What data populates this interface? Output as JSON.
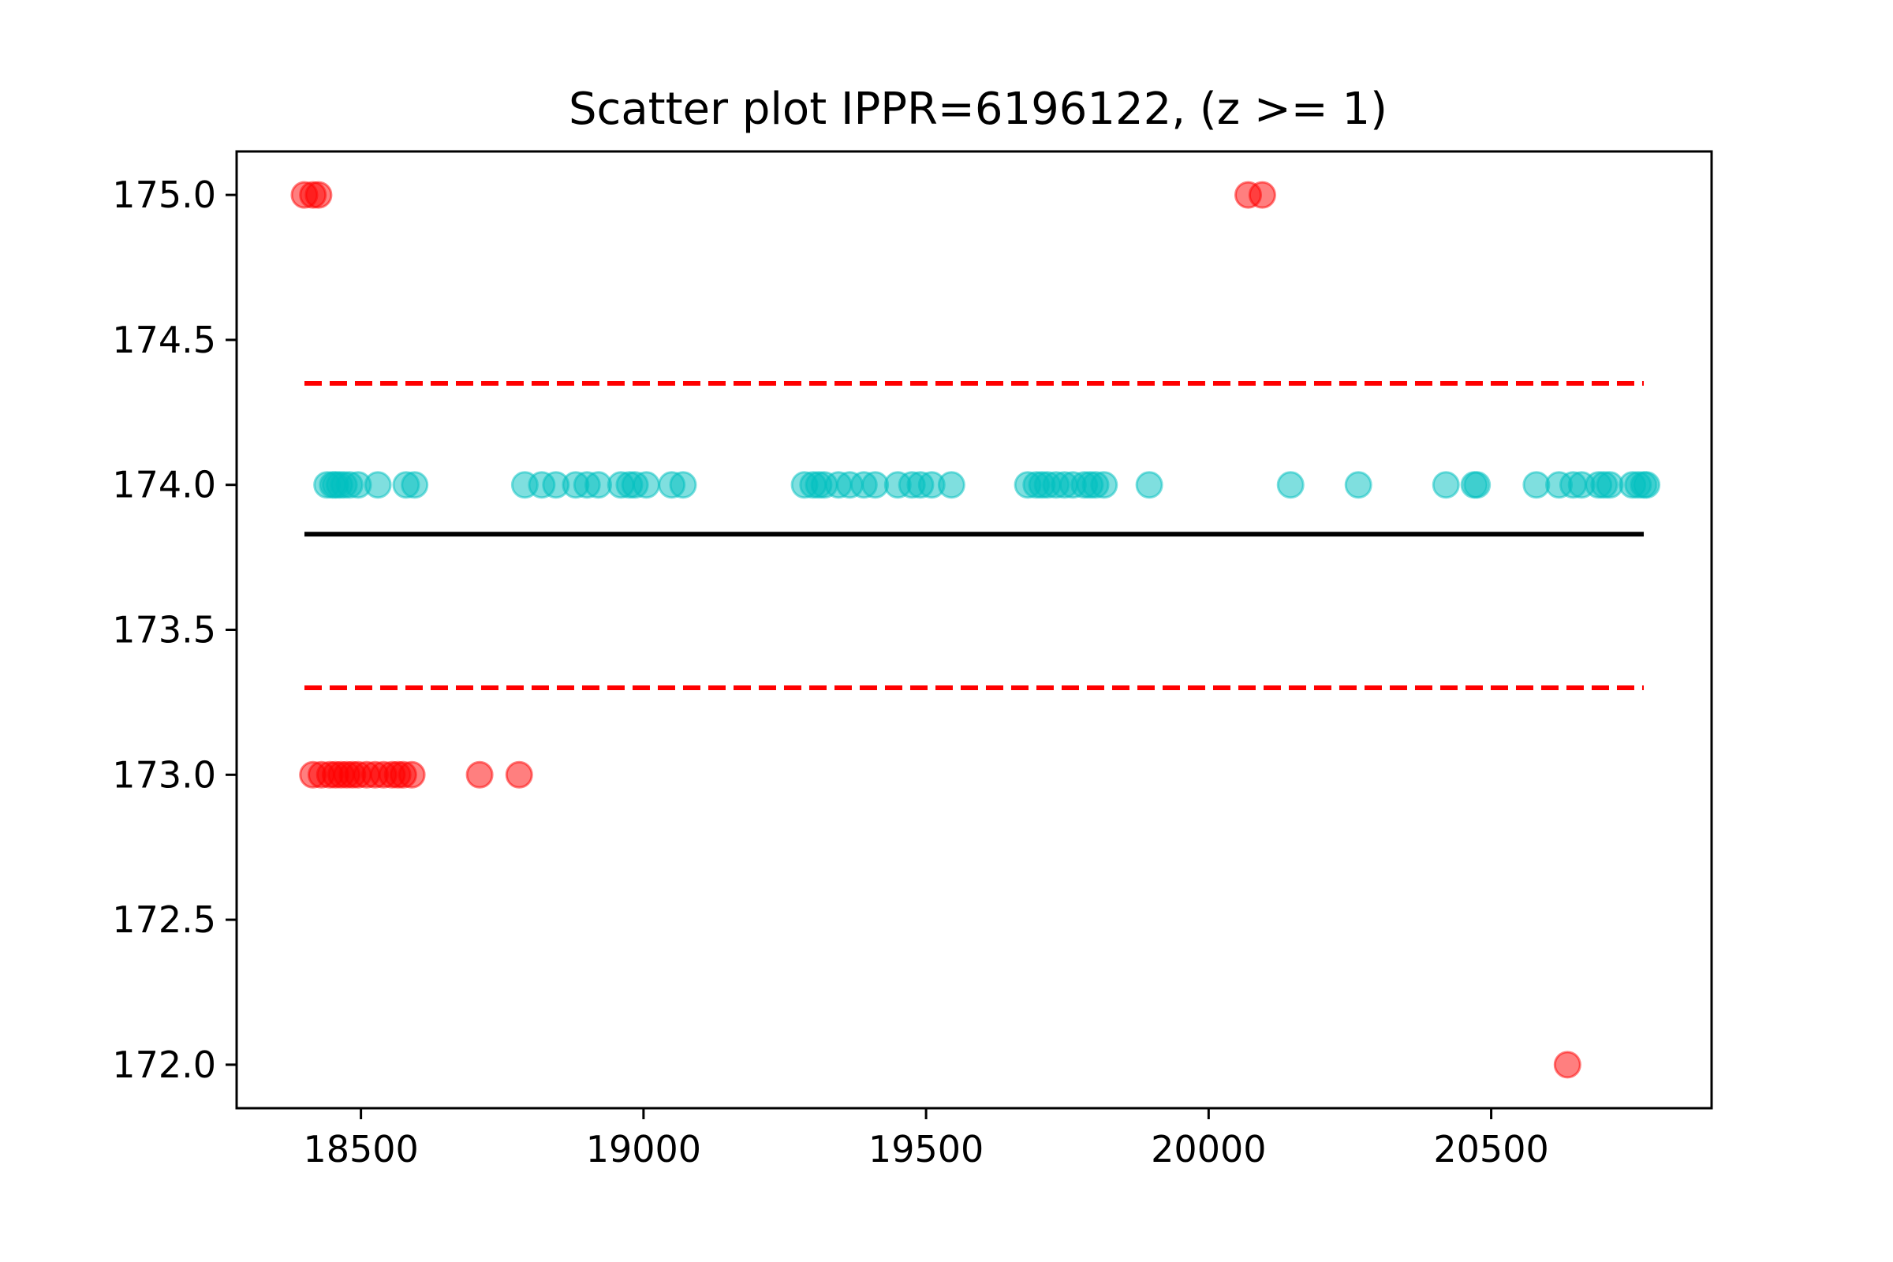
{
  "chart_data": {
    "type": "scatter",
    "title": "Scatter plot IPPR=6196122, (z >= 1)",
    "xlabel": "",
    "ylabel": "",
    "xlim": [
      18280,
      20890
    ],
    "ylim": [
      171.85,
      175.15
    ],
    "x_ticks": [
      18500,
      19000,
      19500,
      20000,
      20500
    ],
    "y_ticks": [
      172.0,
      172.5,
      173.0,
      173.5,
      174.0,
      174.5,
      175.0
    ],
    "grid": false,
    "legend": "none",
    "colors": {
      "inlier": "#00bfbf",
      "outlier": "#ff0000",
      "mean_line": "#000000",
      "bound_line": "#ff0000"
    },
    "reference_lines": [
      {
        "role": "mean",
        "y": 173.83,
        "x_range": [
          18400,
          20770
        ],
        "style": "solid"
      },
      {
        "role": "upper-bound",
        "y": 174.35,
        "x_range": [
          18400,
          20770
        ],
        "style": "dashed"
      },
      {
        "role": "lower-bound",
        "y": 173.3,
        "x_range": [
          18400,
          20770
        ],
        "style": "dashed"
      }
    ],
    "series": [
      {
        "role": "inliers",
        "points": [
          [
            18440,
            174
          ],
          [
            18450,
            174
          ],
          [
            18455,
            174
          ],
          [
            18462,
            174
          ],
          [
            18470,
            174
          ],
          [
            18480,
            174
          ],
          [
            18495,
            174
          ],
          [
            18530,
            174
          ],
          [
            18580,
            174
          ],
          [
            18595,
            174
          ],
          [
            18790,
            174
          ],
          [
            18820,
            174
          ],
          [
            18845,
            174
          ],
          [
            18880,
            174
          ],
          [
            18900,
            174
          ],
          [
            18920,
            174
          ],
          [
            18960,
            174
          ],
          [
            18975,
            174
          ],
          [
            18985,
            174
          ],
          [
            19005,
            174
          ],
          [
            19050,
            174
          ],
          [
            19070,
            174
          ],
          [
            19285,
            174
          ],
          [
            19300,
            174
          ],
          [
            19310,
            174
          ],
          [
            19320,
            174
          ],
          [
            19345,
            174
          ],
          [
            19365,
            174
          ],
          [
            19390,
            174
          ],
          [
            19410,
            174
          ],
          [
            19450,
            174
          ],
          [
            19475,
            174
          ],
          [
            19490,
            174
          ],
          [
            19510,
            174
          ],
          [
            19545,
            174
          ],
          [
            19680,
            174
          ],
          [
            19695,
            174
          ],
          [
            19705,
            174
          ],
          [
            19715,
            174
          ],
          [
            19730,
            174
          ],
          [
            19745,
            174
          ],
          [
            19760,
            174
          ],
          [
            19780,
            174
          ],
          [
            19790,
            174
          ],
          [
            19800,
            174
          ],
          [
            19815,
            174
          ],
          [
            19895,
            174
          ],
          [
            20145,
            174
          ],
          [
            20265,
            174
          ],
          [
            20420,
            174
          ],
          [
            20470,
            174
          ],
          [
            20475,
            174
          ],
          [
            20580,
            174
          ],
          [
            20620,
            174
          ],
          [
            20645,
            174
          ],
          [
            20660,
            174
          ],
          [
            20690,
            174
          ],
          [
            20700,
            174
          ],
          [
            20710,
            174
          ],
          [
            20750,
            174
          ],
          [
            20760,
            174
          ],
          [
            20770,
            174
          ],
          [
            20775,
            174
          ]
        ]
      },
      {
        "role": "outliers",
        "points": [
          [
            18400,
            175
          ],
          [
            18415,
            175
          ],
          [
            18425,
            175
          ],
          [
            20070,
            175
          ],
          [
            20095,
            175
          ],
          [
            18415,
            173
          ],
          [
            18430,
            173
          ],
          [
            18445,
            173
          ],
          [
            18455,
            173
          ],
          [
            18465,
            173
          ],
          [
            18475,
            173
          ],
          [
            18485,
            173
          ],
          [
            18495,
            173
          ],
          [
            18510,
            173
          ],
          [
            18525,
            173
          ],
          [
            18540,
            173
          ],
          [
            18555,
            173
          ],
          [
            18565,
            173
          ],
          [
            18575,
            173
          ],
          [
            18590,
            173
          ],
          [
            18710,
            173
          ],
          [
            18780,
            173
          ],
          [
            20635,
            172
          ]
        ]
      }
    ]
  }
}
